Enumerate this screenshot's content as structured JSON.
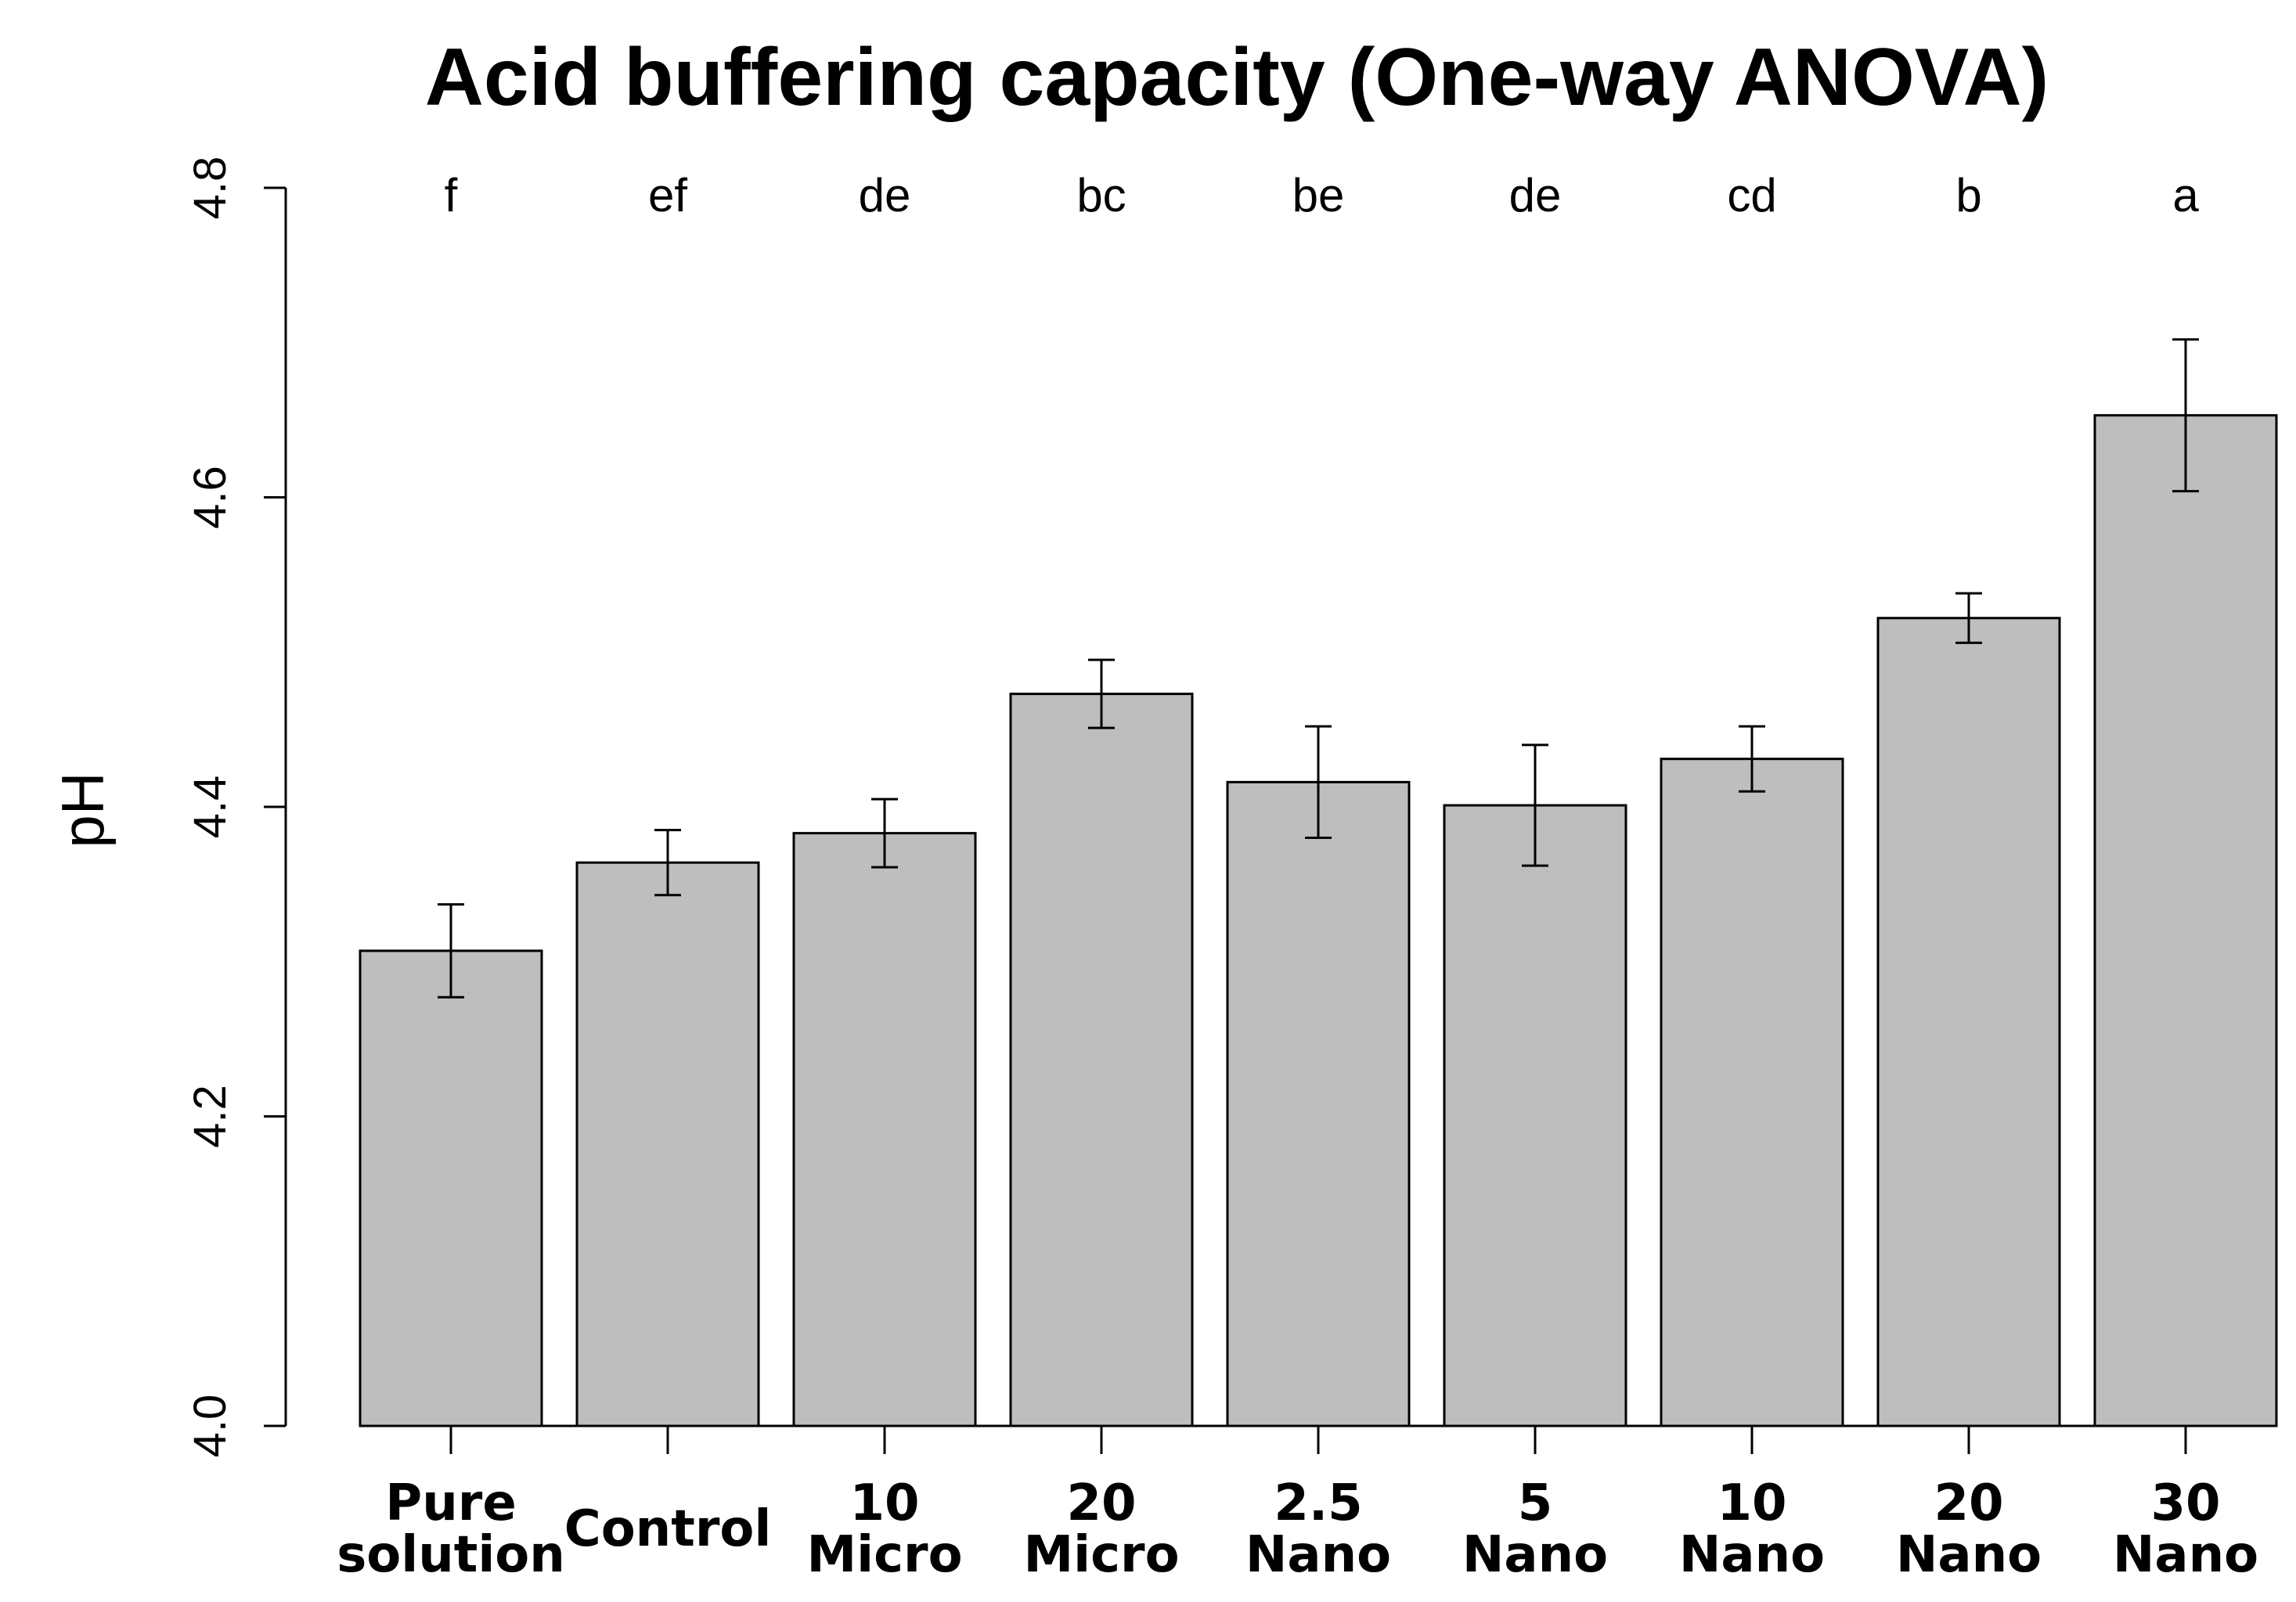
{
  "chart_data": {
    "type": "bar",
    "title": "Acid buffering capacity (One-way ANOVA)",
    "ylabel": "pH",
    "xlabel": "",
    "ylim": [
      4.0,
      4.8
    ],
    "yticks": [
      "4.0",
      "4.2",
      "4.4",
      "4.6",
      "4.8"
    ],
    "grid": false,
    "legend": "none",
    "bar_color": "#bebebe",
    "categories": [
      [
        "Pure",
        "solution"
      ],
      [
        "Control"
      ],
      [
        "10",
        "Micro"
      ],
      [
        "20",
        "Micro"
      ],
      [
        "2.5",
        "Nano"
      ],
      [
        "5",
        "Nano"
      ],
      [
        "10",
        "Nano"
      ],
      [
        "20",
        "Nano"
      ],
      [
        "30",
        "Nano"
      ]
    ],
    "values": [
      4.307,
      4.364,
      4.383,
      4.473,
      4.416,
      4.401,
      4.431,
      4.522,
      4.653
    ],
    "error": [
      0.03,
      0.021,
      0.022,
      0.022,
      0.036,
      0.039,
      0.021,
      0.016,
      0.049
    ],
    "significance_letters": [
      "f",
      "ef",
      "de",
      "bc",
      "be",
      "de",
      "cd",
      "b",
      "a"
    ]
  }
}
